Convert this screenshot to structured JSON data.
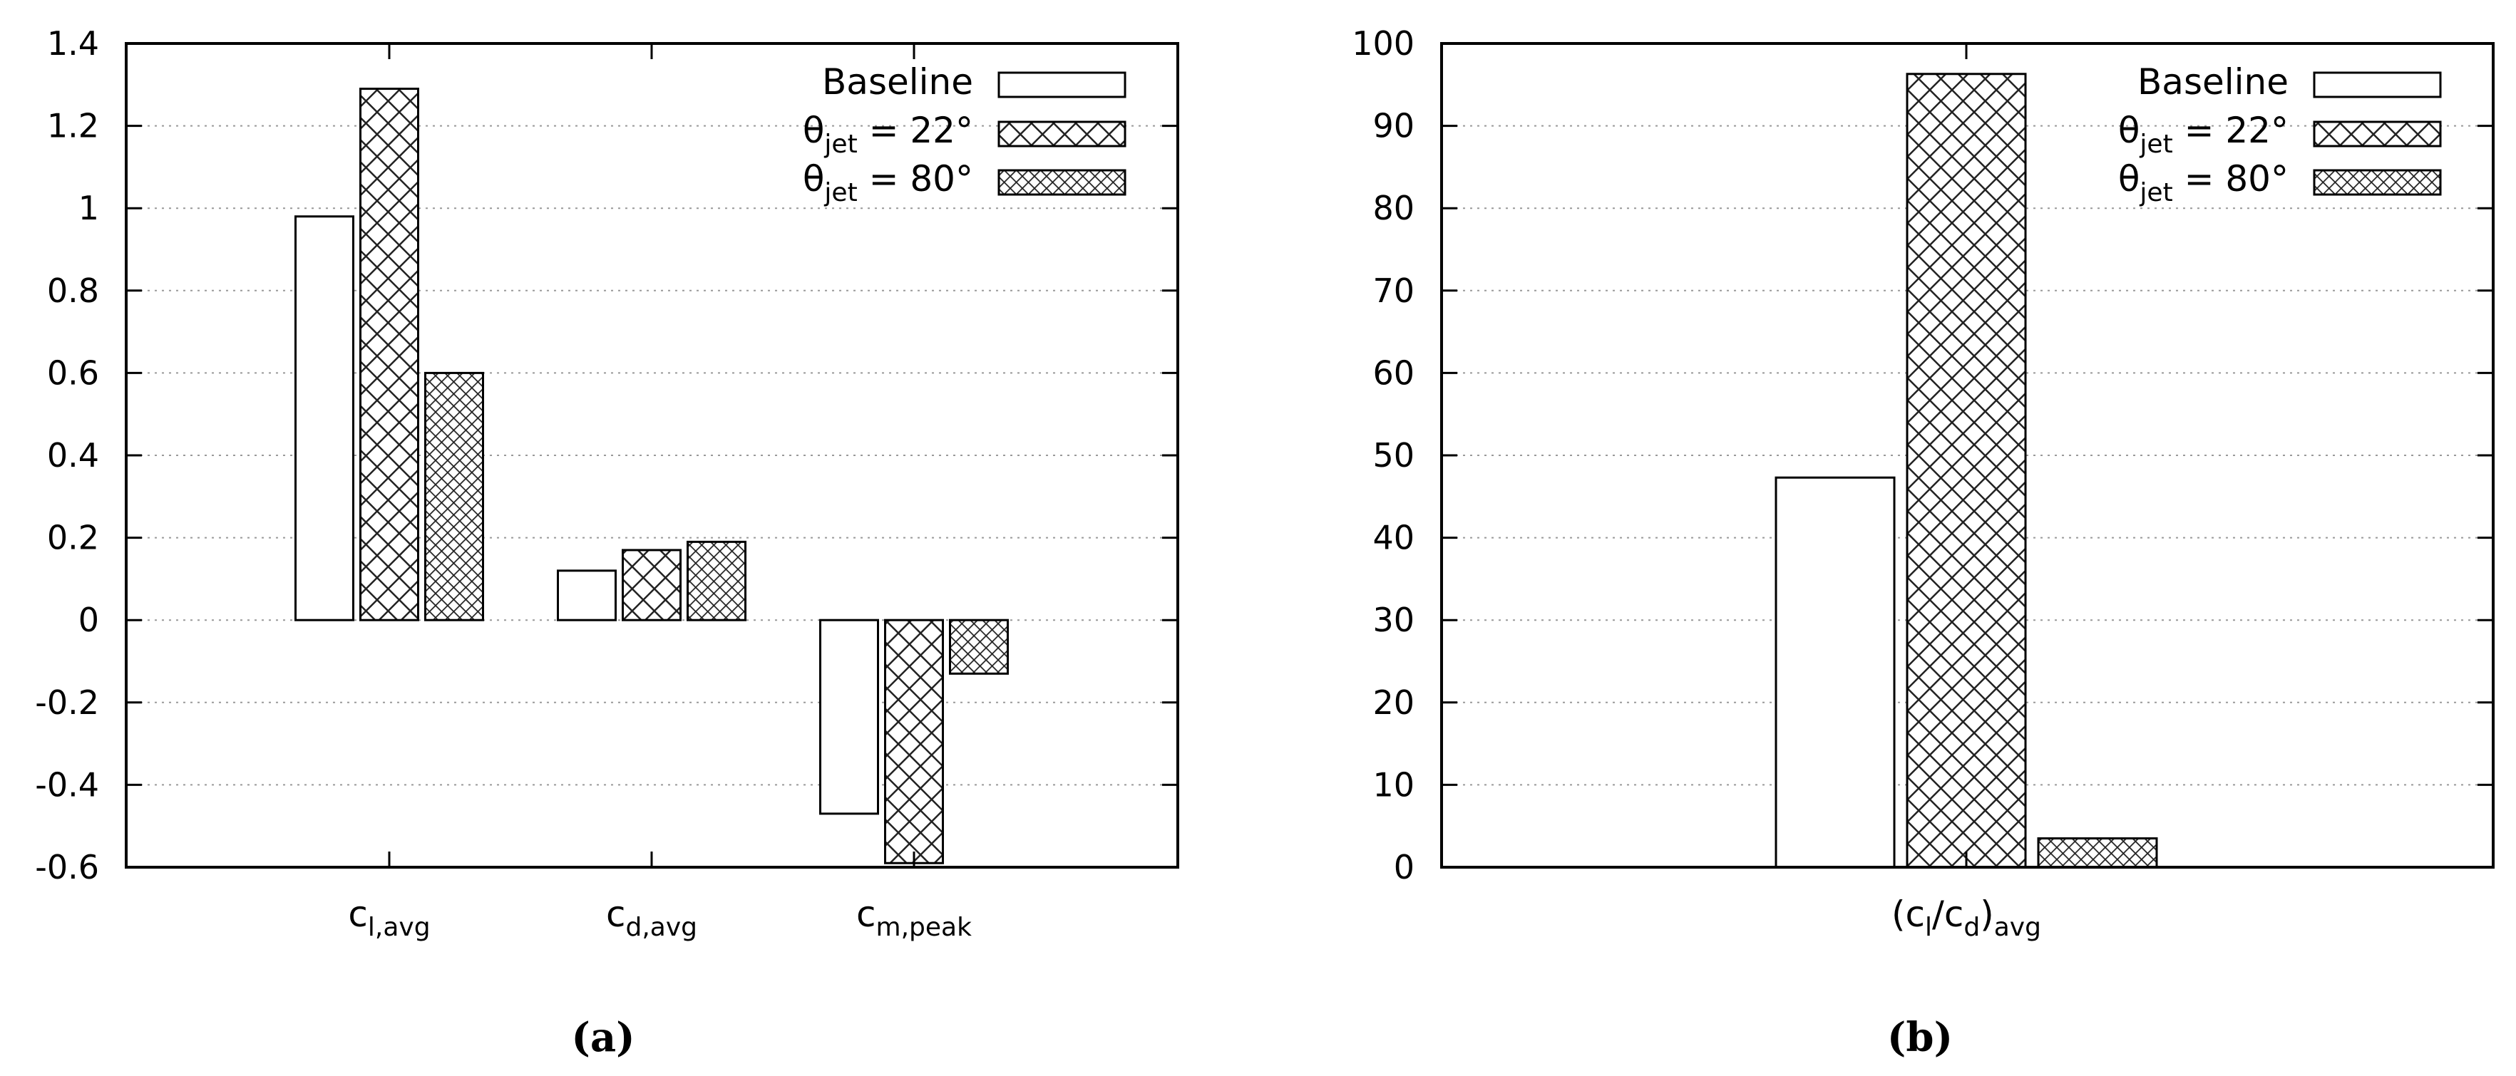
{
  "chart_data": [
    {
      "id": "a",
      "type": "bar",
      "caption": "(a)",
      "categories": [
        {
          "main": "c",
          "sub": "l,avg"
        },
        {
          "main": "c",
          "sub": "d,avg"
        },
        {
          "main": "c",
          "sub": "m,peak"
        }
      ],
      "series": [
        {
          "name": "Baseline",
          "pattern": "none",
          "values": [
            0.98,
            0.12,
            -0.47
          ]
        },
        {
          "name": "θjet = 22°",
          "pattern": "coarse-crosshatch",
          "values": [
            1.29,
            0.17,
            -0.59
          ]
        },
        {
          "name": "θjet = 80°",
          "pattern": "fine-crosshatch",
          "values": [
            0.6,
            0.19,
            -0.13
          ]
        }
      ],
      "ylim": [
        -0.6,
        1.4
      ],
      "yticks": [
        -0.6,
        -0.4,
        -0.2,
        0,
        0.2,
        0.4,
        0.6,
        0.8,
        1,
        1.2,
        1.4
      ],
      "ytick_labels": [
        "-0.6",
        "-0.4",
        "-0.2",
        "0",
        "0.2",
        "0.4",
        "0.6",
        "0.8",
        "1",
        "1.2",
        "1.4"
      ],
      "grid": "horizontal dotted",
      "legend_position": "top-right",
      "xlabel": "",
      "ylabel": ""
    },
    {
      "id": "b",
      "type": "bar",
      "caption": "(b)",
      "categories": [
        {
          "main": "(c",
          "sub": "l",
          "main2": "/c",
          "sub2": "d",
          "main3": ")",
          "sub3": "avg"
        }
      ],
      "series": [
        {
          "name": "Baseline",
          "pattern": "none",
          "values": [
            47.3
          ]
        },
        {
          "name": "θjet = 22°",
          "pattern": "coarse-crosshatch",
          "values": [
            96.3
          ]
        },
        {
          "name": "θjet = 80°",
          "pattern": "fine-crosshatch",
          "values": [
            3.5
          ]
        }
      ],
      "ylim": [
        0,
        100
      ],
      "yticks": [
        0,
        10,
        20,
        30,
        40,
        50,
        60,
        70,
        80,
        90,
        100
      ],
      "ytick_labels": [
        "0",
        "10",
        "20",
        "30",
        "40",
        "50",
        "60",
        "70",
        "80",
        "90",
        "100"
      ],
      "grid": "horizontal dotted",
      "legend_position": "top-right",
      "xlabel": "",
      "ylabel": ""
    }
  ],
  "legend_labels": {
    "baseline": "Baseline",
    "theta22": {
      "sym": "θ",
      "sub": "jet",
      "rest": " = 22°"
    },
    "theta80": {
      "sym": "θ",
      "sub": "jet",
      "rest": " = 80°"
    }
  }
}
